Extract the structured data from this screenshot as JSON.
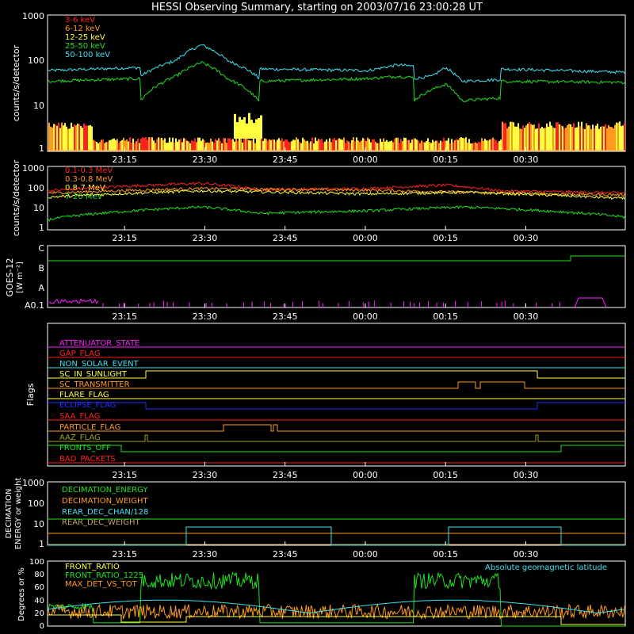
{
  "title": "HESSI Observing Summary, starting on 2003/07/16 23:00:28 UT",
  "time_ticks": [
    "23:15",
    "23:30",
    "23:45",
    "00:00",
    "00:15",
    "00:30"
  ],
  "colors": {
    "red": "#ff2020",
    "orange": "#ff9a20",
    "yellow": "#ffff40",
    "green": "#20e020",
    "cyan": "#40e0f0",
    "magenta": "#ff20ff",
    "blue": "#2030ff",
    "olive": "#a0a020",
    "axes": "#ffffff",
    "tan": "#c8a060"
  },
  "panels": {
    "lo": {
      "ylabel": "counts/s/detector",
      "yticks": [
        "1",
        "10",
        "100",
        "1000"
      ],
      "legend": [
        {
          "label": "3-6 keV",
          "color": "red"
        },
        {
          "label": "6-12 keV",
          "color": "orange"
        },
        {
          "label": "12-25 keV",
          "color": "yellow"
        },
        {
          "label": "25-50 keV",
          "color": "green"
        },
        {
          "label": "50-100 keV",
          "color": "cyan"
        }
      ]
    },
    "hi": {
      "ylabel": "counts/s/detector",
      "yticks": [
        "1",
        "10",
        "100",
        "1000"
      ],
      "legend": [
        {
          "label": "0.1-0.3 MeV",
          "color": "red"
        },
        {
          "label": "0.3-0.8 MeV",
          "color": "orange"
        },
        {
          "label": "0.8-7 MeV",
          "color": "yellow"
        },
        {
          "label": "7-20 MeV",
          "color": "green"
        }
      ]
    },
    "goes": {
      "ylabel_1": "GOES-12",
      "ylabel_2": "[W m⁻²]",
      "yticks": [
        "A0.1",
        "A",
        "B",
        "C"
      ]
    },
    "flags": {
      "ylabel": "Flags",
      "labels": [
        {
          "label": "ATTENUATOR_STATE",
          "color": "magenta"
        },
        {
          "label": "GAP_FLAG",
          "color": "red"
        },
        {
          "label": "NON_SOLAR_EVENT",
          "color": "cyan"
        },
        {
          "label": "SC_IN_SUNLIGHT",
          "color": "yellow"
        },
        {
          "label": "SC_TRANSMITTER",
          "color": "orange"
        },
        {
          "label": "FLARE_FLAG",
          "color": "yellow"
        },
        {
          "label": "ECLIPSE_FLAG",
          "color": "blue"
        },
        {
          "label": "SAA_FLAG",
          "color": "red"
        },
        {
          "label": "PARTICLE_FLAG",
          "color": "orange"
        },
        {
          "label": "AAZ_FLAG",
          "color": "olive"
        },
        {
          "label": "FRONTS_OFF",
          "color": "green"
        },
        {
          "label": "BAD_PACKETS",
          "color": "red"
        }
      ]
    },
    "decim": {
      "ylabel_1": "DECIMATION",
      "ylabel_2": "ENERGY or weight",
      "yticks": [
        "1",
        "10",
        "100",
        "1000"
      ],
      "legend": [
        {
          "label": "DECIMATION_ENERGY",
          "color": "green"
        },
        {
          "label": "DECIMATION_WEIGHT",
          "color": "orange"
        },
        {
          "label": "REAR_DEC_CHAN/128",
          "color": "cyan"
        },
        {
          "label": "REAR_DEC_WEIGHT",
          "color": "tan"
        }
      ]
    },
    "ratio": {
      "ylabel": "Degrees or %",
      "yticks": [
        "0",
        "20",
        "40",
        "60",
        "80",
        "100"
      ],
      "legend": [
        {
          "label": "FRONT_RATIO",
          "color": "yellow"
        },
        {
          "label": "FRONT_RATIO_1225",
          "color": "green"
        },
        {
          "label": "MAX_DET_VS_TOT",
          "color": "orange"
        }
      ],
      "right_label": "Absolute geomagnetic latitude"
    }
  },
  "chart_data": [
    {
      "type": "line",
      "panel": "lo",
      "yscale": "log",
      "ylim": [
        1,
        1000
      ],
      "xlim_hours": [
        0,
        1.8
      ],
      "series": [
        {
          "name": "50-100 keV",
          "profile": [
            [
              0,
              60
            ],
            [
              0.29,
              70
            ],
            [
              0.29,
              45
            ],
            [
              0.4,
              100
            ],
            [
              0.48,
              220
            ],
            [
              0.56,
              100
            ],
            [
              0.66,
              40
            ],
            [
              0.66,
              65
            ],
            [
              1.0,
              60
            ],
            [
              1.09,
              80
            ],
            [
              1.14,
              75
            ],
            [
              1.14,
              40
            ],
            [
              1.2,
              45
            ],
            [
              1.24,
              70
            ],
            [
              1.29,
              35
            ],
            [
              1.41,
              38
            ],
            [
              1.41,
              65
            ],
            [
              1.8,
              55
            ]
          ]
        },
        {
          "name": "25-50 keV",
          "profile": [
            [
              0,
              35
            ],
            [
              0.29,
              40
            ],
            [
              0.29,
              13
            ],
            [
              0.4,
              45
            ],
            [
              0.48,
              90
            ],
            [
              0.56,
              40
            ],
            [
              0.66,
              12
            ],
            [
              0.66,
              35
            ],
            [
              1.0,
              40
            ],
            [
              1.09,
              45
            ],
            [
              1.14,
              42
            ],
            [
              1.14,
              13
            ],
            [
              1.24,
              30
            ],
            [
              1.29,
              13
            ],
            [
              1.41,
              15
            ],
            [
              1.41,
              35
            ],
            [
              1.8,
              33
            ]
          ]
        }
      ]
    },
    {
      "type": "line",
      "panel": "hi",
      "yscale": "log",
      "ylim": [
        1,
        1000
      ],
      "series": [
        {
          "name": "0.1-0.3 MeV",
          "profile": [
            [
              0,
              70
            ],
            [
              0.48,
              160
            ],
            [
              0.66,
              80
            ],
            [
              1.0,
              90
            ],
            [
              1.24,
              130
            ],
            [
              1.41,
              70
            ],
            [
              1.8,
              55
            ]
          ]
        },
        {
          "name": "0.3-0.8 MeV",
          "profile": [
            [
              0,
              55
            ],
            [
              0.48,
              90
            ],
            [
              1.0,
              75
            ],
            [
              1.41,
              55
            ],
            [
              1.8,
              45
            ]
          ]
        },
        {
          "name": "0.8-7 MeV",
          "profile": [
            [
              0,
              35
            ],
            [
              0.48,
              70
            ],
            [
              1.0,
              50
            ],
            [
              1.3,
              60
            ],
            [
              1.8,
              30
            ]
          ]
        },
        {
          "name": "7-20 MeV",
          "profile": [
            [
              0,
              3
            ],
            [
              0.48,
              12
            ],
            [
              0.66,
              6
            ],
            [
              1.0,
              8
            ],
            [
              1.3,
              12
            ],
            [
              1.8,
              4
            ]
          ]
        }
      ]
    },
    {
      "type": "line",
      "panel": "ratio",
      "ylim": [
        0,
        100
      ],
      "series": [
        {
          "name": "FRONT_RATIO_1225",
          "profile": [
            [
              0,
              30
            ],
            [
              0.14,
              30
            ],
            [
              0.14,
              5
            ],
            [
              0.29,
              5
            ],
            [
              0.29,
              70
            ],
            [
              0.66,
              70
            ],
            [
              0.66,
              5
            ],
            [
              1.14,
              5
            ],
            [
              1.14,
              70
            ],
            [
              1.41,
              70
            ],
            [
              1.41,
              0
            ],
            [
              1.8,
              0
            ]
          ]
        },
        {
          "name": "MAX_DET_VS_TOT",
          "profile": [
            [
              0,
              20
            ],
            [
              1.8,
              20
            ]
          ]
        }
      ]
    }
  ]
}
